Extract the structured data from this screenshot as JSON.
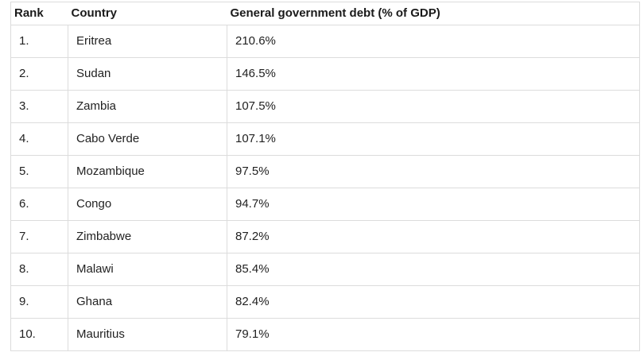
{
  "chart_data": {
    "type": "table",
    "title": "",
    "columns": [
      "Rank",
      "Country",
      "General government debt (% of GDP)"
    ],
    "categories": [
      "Eritrea",
      "Sudan",
      "Zambia",
      "Cabo Verde",
      "Mozambique",
      "Congo",
      "Zimbabwe",
      "Malawi",
      "Ghana",
      "Mauritius"
    ],
    "values": [
      210.6,
      146.5,
      107.5,
      107.1,
      97.5,
      94.7,
      87.2,
      85.4,
      82.4,
      79.1
    ],
    "value_unit": "% of GDP"
  },
  "table": {
    "columns": {
      "rank": "Rank",
      "country": "Country",
      "value": "General government debt (% of GDP)"
    },
    "rows": [
      {
        "rank": "1.",
        "country": "Eritrea",
        "value": "210.6%"
      },
      {
        "rank": "2.",
        "country": "Sudan",
        "value": "146.5%"
      },
      {
        "rank": "3.",
        "country": "Zambia",
        "value": "107.5%"
      },
      {
        "rank": "4.",
        "country": "Cabo Verde",
        "value": "107.1%"
      },
      {
        "rank": "5.",
        "country": "Mozambique",
        "value": "97.5%"
      },
      {
        "rank": "6.",
        "country": "Congo",
        "value": "94.7%"
      },
      {
        "rank": "7.",
        "country": "Zimbabwe",
        "value": "87.2%"
      },
      {
        "rank": "8.",
        "country": "Malawi",
        "value": "85.4%"
      },
      {
        "rank": "9.",
        "country": "Ghana",
        "value": "82.4%"
      },
      {
        "rank": "10.",
        "country": "Mauritius",
        "value": "79.1%"
      }
    ]
  },
  "colors": {
    "border": "#dcdcdc",
    "header_text": "#1a1a1a",
    "body_text": "#222222",
    "background": "#ffffff"
  }
}
